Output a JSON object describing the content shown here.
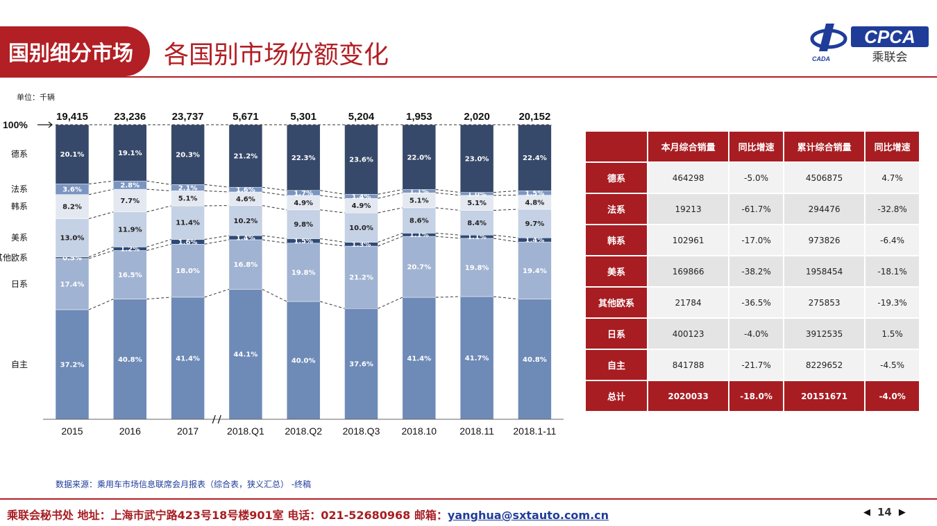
{
  "header": {
    "section_tab": "国别细分市场",
    "title": "各国别市场份额变化",
    "logo_text": "CPCA",
    "logo_cn": "乘联会",
    "logo_small": "CADA"
  },
  "unit_label": "单位：千辆",
  "chart_data": {
    "type": "bar",
    "stacked": "percent",
    "categories": [
      "2015",
      "2016",
      "2017",
      "2018.Q1",
      "2018.Q2",
      "2018.Q3",
      "2018.10",
      "2018.11",
      "2018.1-11"
    ],
    "totals": [
      "19,415",
      "23,236",
      "23,737",
      "5,671",
      "5,301",
      "5,204",
      "1,953",
      "2,020",
      "20,152"
    ],
    "hundred_label": "100%",
    "axis_break_after": "2017",
    "series": [
      {
        "name": "自主",
        "color": "#6e8ab7",
        "values": [
          37.2,
          40.8,
          41.4,
          44.1,
          40.0,
          37.6,
          41.4,
          41.7,
          40.8
        ]
      },
      {
        "name": "日系",
        "color": "#a1b3d2",
        "values": [
          17.4,
          16.5,
          18.0,
          16.8,
          19.8,
          21.2,
          20.7,
          19.8,
          19.4
        ]
      },
      {
        "name": "其他欧系",
        "color": "#2f4a77",
        "values": [
          0.5,
          1.2,
          1.6,
          1.4,
          1.5,
          1.3,
          1.1,
          1.1,
          1.4
        ]
      },
      {
        "name": "美系",
        "color": "#c5d1e4",
        "values": [
          13.0,
          11.9,
          11.4,
          10.2,
          9.8,
          10.0,
          8.6,
          8.4,
          9.7
        ]
      },
      {
        "name": "韩系",
        "color": "#e3e8f1",
        "values": [
          8.2,
          7.7,
          5.1,
          4.6,
          4.9,
          4.9,
          5.1,
          5.1,
          4.8
        ]
      },
      {
        "name": "法系",
        "color": "#7b95c1",
        "values": [
          3.6,
          2.8,
          2.1,
          1.6,
          1.7,
          1.4,
          1.1,
          1.0,
          1.5
        ]
      },
      {
        "name": "德系",
        "color": "#37496a",
        "values": [
          20.1,
          19.1,
          20.3,
          21.2,
          22.3,
          23.6,
          22.0,
          23.0,
          22.4
        ]
      }
    ]
  },
  "table": {
    "headers": [
      "",
      "本月综合销量",
      "同比增速",
      "累计综合销量",
      "同比增速"
    ],
    "rows": [
      [
        "德系",
        "464298",
        "-5.0%",
        "4506875",
        "4.7%"
      ],
      [
        "法系",
        "19213",
        "-61.7%",
        "294476",
        "-32.8%"
      ],
      [
        "韩系",
        "102961",
        "-17.0%",
        "973826",
        "-6.4%"
      ],
      [
        "美系",
        "169866",
        "-38.2%",
        "1958454",
        "-18.1%"
      ],
      [
        "其他欧系",
        "21784",
        "-36.5%",
        "275853",
        "-19.3%"
      ],
      [
        "日系",
        "400123",
        "-4.0%",
        "3912535",
        "1.5%"
      ],
      [
        "自主",
        "841788",
        "-21.7%",
        "8229652",
        "-4.5%"
      ]
    ],
    "total": [
      "总计",
      "2020033",
      "-18.0%",
      "20151671",
      "-4.0%"
    ]
  },
  "source": "数据来源：乘用车市场信息联席会月报表（综合表，狭义汇总） -终稿",
  "footer": {
    "text": "乘联会秘书处  地址：上海市武宁路423号18号楼901室  电话：021-52680968  邮箱：",
    "email": "yanghua@sxtauto.com.cn",
    "page": "14",
    "prev_icon": "triangle-left-icon",
    "next_icon": "triangle-right-icon"
  }
}
